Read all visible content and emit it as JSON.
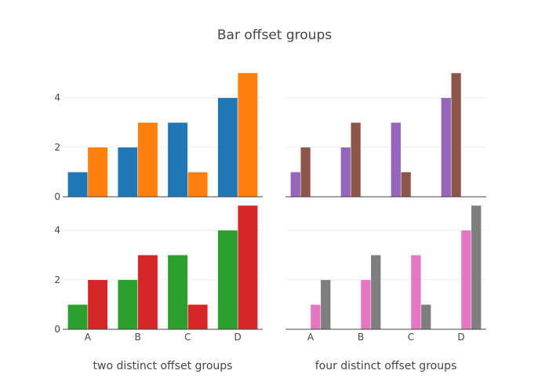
{
  "chart_data": {
    "type": "bar",
    "title": "Bar offset groups",
    "categories": [
      "A",
      "B",
      "C",
      "D"
    ],
    "ylim": [
      0,
      5
    ],
    "yticks": [
      0,
      2,
      4
    ],
    "grid": true,
    "legend": "none",
    "subplots": [
      {
        "position": "top-left",
        "offset_groups": 2,
        "xlabel": "",
        "series": [
          {
            "offsetgroup": 0,
            "color": "#1f77b4",
            "values": [
              1,
              2,
              3,
              4
            ]
          },
          {
            "offsetgroup": 1,
            "color": "#ff7f0e",
            "values": [
              2,
              3,
              1,
              5
            ]
          }
        ]
      },
      {
        "position": "top-right",
        "offset_groups": 4,
        "xlabel": "",
        "series": [
          {
            "offsetgroup": 0,
            "color": "#9467bd",
            "values": [
              1,
              2,
              3,
              4
            ]
          },
          {
            "offsetgroup": 1,
            "color": "#8c564b",
            "values": [
              2,
              3,
              1,
              5
            ]
          }
        ]
      },
      {
        "position": "bottom-left",
        "offset_groups": 2,
        "xlabel": "two distinct offset groups",
        "series": [
          {
            "offsetgroup": 0,
            "color": "#2ca02c",
            "values": [
              1,
              2,
              3,
              4
            ]
          },
          {
            "offsetgroup": 1,
            "color": "#d62728",
            "values": [
              2,
              3,
              1,
              5
            ]
          }
        ]
      },
      {
        "position": "bottom-right",
        "offset_groups": 4,
        "xlabel": "four distinct offset groups",
        "series": [
          {
            "offsetgroup": 2,
            "color": "#e377c2",
            "values": [
              1,
              2,
              3,
              4
            ]
          },
          {
            "offsetgroup": 3,
            "color": "#7f7f7f",
            "values": [
              2,
              3,
              1,
              5
            ]
          }
        ]
      }
    ]
  }
}
